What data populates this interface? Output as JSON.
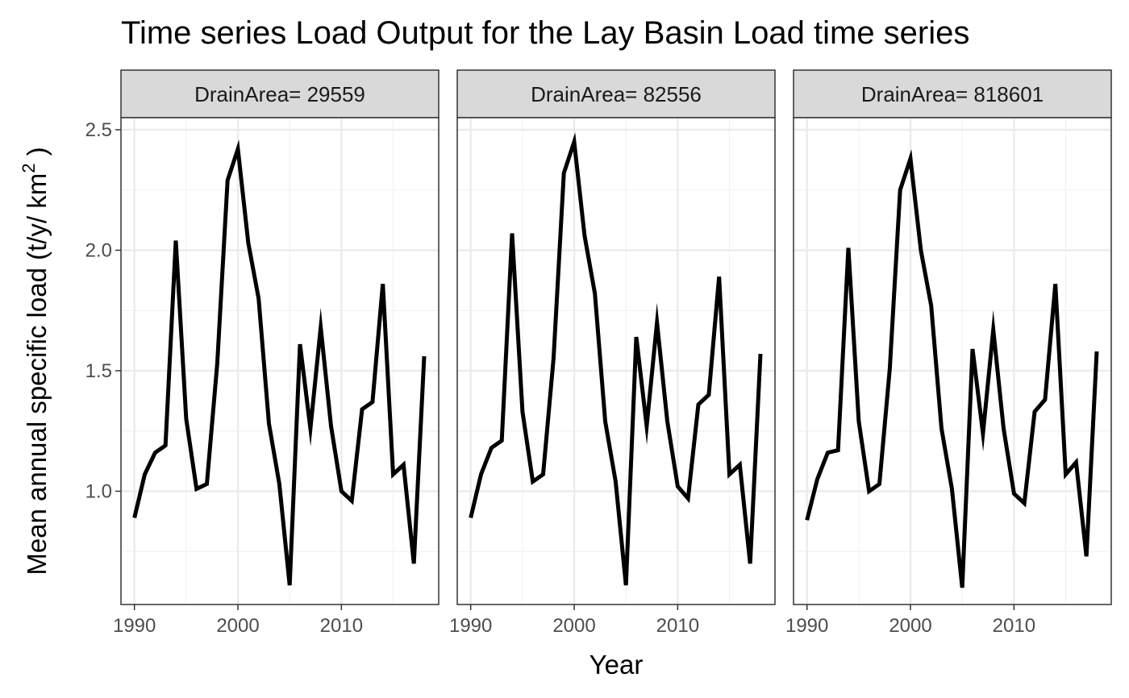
{
  "chart_data": {
    "type": "line",
    "title": "Time series Load Output for the Lay Basin Load time series",
    "xlabel": "Year",
    "ylabel": "Mean annual specific load (t/y/ km",
    "ylabel_superscript": "2",
    "ylabel_suffix": " )",
    "xlim": [
      1988.7,
      2019.4
    ],
    "ylim": [
      0.53,
      2.55
    ],
    "x_ticks": [
      1990,
      2000,
      2010
    ],
    "y_ticks": [
      1.0,
      1.5,
      2.0,
      2.5
    ],
    "y_tick_labels": [
      "1.0",
      "1.5",
      "2.0",
      "2.5"
    ],
    "grid": true,
    "x": [
      1990,
      1991,
      1992,
      1993,
      1994,
      1995,
      1996,
      1997,
      1998,
      1999,
      2000,
      2001,
      2002,
      2003,
      2004,
      2005,
      2006,
      2007,
      2008,
      2009,
      2010,
      2011,
      2012,
      2013,
      2014,
      2015,
      2016,
      2017,
      2018
    ],
    "panels": [
      {
        "strip_label": "DrainArea= 29559",
        "values": [
          0.89,
          1.07,
          1.16,
          1.19,
          2.04,
          1.3,
          1.01,
          1.03,
          1.53,
          2.29,
          2.42,
          2.03,
          1.8,
          1.28,
          1.03,
          0.61,
          1.61,
          1.26,
          1.68,
          1.27,
          1.0,
          0.96,
          1.34,
          1.37,
          1.86,
          1.07,
          1.11,
          0.7,
          1.56
        ]
      },
      {
        "strip_label": "DrainArea= 82556",
        "values": [
          0.89,
          1.07,
          1.18,
          1.21,
          2.07,
          1.33,
          1.04,
          1.07,
          1.55,
          2.32,
          2.45,
          2.06,
          1.82,
          1.29,
          1.04,
          0.61,
          1.64,
          1.27,
          1.7,
          1.29,
          1.02,
          0.97,
          1.36,
          1.4,
          1.89,
          1.07,
          1.11,
          0.7,
          1.57
        ]
      },
      {
        "strip_label": "DrainArea= 818601",
        "values": [
          0.88,
          1.05,
          1.16,
          1.17,
          2.01,
          1.29,
          1.0,
          1.03,
          1.51,
          2.25,
          2.38,
          2.0,
          1.77,
          1.26,
          1.01,
          0.6,
          1.59,
          1.24,
          1.67,
          1.26,
          0.99,
          0.95,
          1.33,
          1.38,
          1.86,
          1.07,
          1.12,
          0.73,
          1.58
        ]
      }
    ],
    "colors": {
      "line": "#000000",
      "strip_fill": "#d9d9d9",
      "panel_border": "#333333",
      "grid_major": "#ebebeb",
      "grid_minor": "#f2f2f2",
      "tick_label": "#4d4d4d"
    }
  }
}
